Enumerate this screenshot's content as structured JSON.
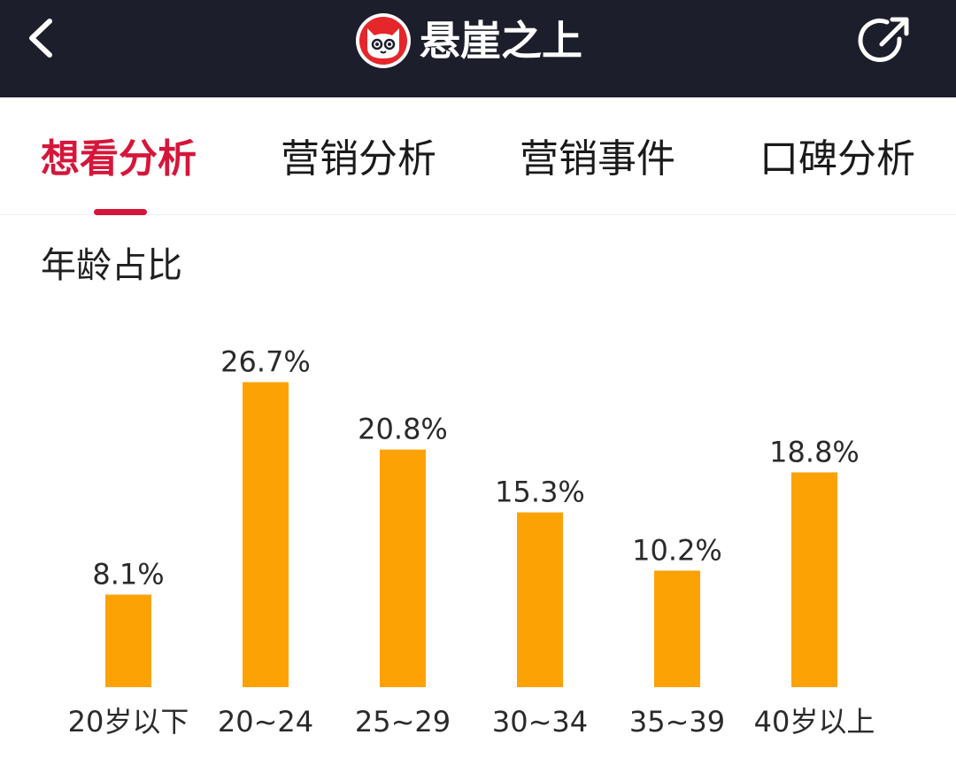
{
  "header": {
    "title": "悬崖之上",
    "back_icon": "chevron-left-icon",
    "logo_icon": "cat-logo-icon",
    "share_icon": "share-icon"
  },
  "tabs": [
    {
      "label": "想看分析",
      "active": true
    },
    {
      "label": "营销分析",
      "active": false
    },
    {
      "label": "营销事件",
      "active": false
    },
    {
      "label": "口碑分析",
      "active": false
    }
  ],
  "section": {
    "title": "年龄占比"
  },
  "colors": {
    "accent": "#d5163a",
    "bar": "#fda205",
    "header_bg": "#1d1e2c"
  },
  "chart_data": {
    "type": "bar",
    "categories": [
      "20岁以下",
      "20~24",
      "25~29",
      "30~34",
      "35~39",
      "40岁以上"
    ],
    "values": [
      8.1,
      26.7,
      20.8,
      15.3,
      10.2,
      18.8
    ],
    "value_labels": [
      "8.1%",
      "26.7%",
      "20.8%",
      "15.3%",
      "10.2%",
      "18.8%"
    ],
    "unit": "%",
    "title": "年龄占比",
    "grid": false,
    "legend": "none"
  }
}
